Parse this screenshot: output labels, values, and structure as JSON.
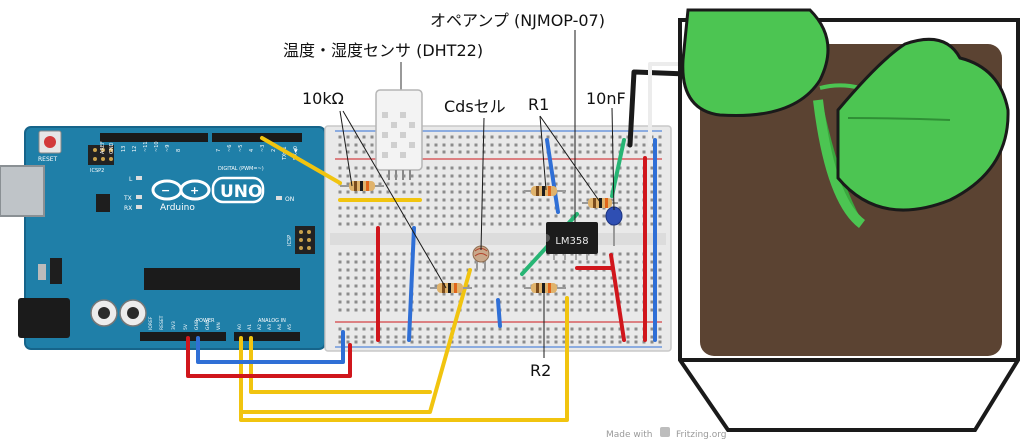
{
  "labels": {
    "opamp": "オペアンプ (NJMOP-07)",
    "dht": "温度・湿度センサ (DHT22)",
    "res10k": "10kΩ",
    "cds": "Cdsセル",
    "r1": "R1",
    "cap": "10nF",
    "r2": "R2"
  },
  "arduino": {
    "board": "UNO",
    "brand": "Arduino",
    "reset": "RESET",
    "icsp2": "ICSP2",
    "icsp": "ICSP",
    "led_l": "L",
    "led_tx": "TX",
    "led_rx": "RX",
    "led_on": "ON",
    "digital": "DIGITAL (PWM=~)",
    "power": "POWER",
    "analog": "ANALOG IN",
    "aref": "AREF",
    "gnd": "GND",
    "ioref": "IOREF",
    "reset_pin": "RESET",
    "v33": "3V3",
    "v5": "5V",
    "gnd_pin": "GND",
    "gnd_pin2": "GND",
    "vin": "VIN",
    "a0": "A0",
    "a1": "A1",
    "a2": "A2",
    "a3": "A3",
    "a4": "A4",
    "a5": "A5",
    "d13": "13",
    "d12": "12",
    "d11": "~11",
    "d10": "~10",
    "d9": "~9",
    "d8": "8",
    "d7": "7",
    "d6": "~6",
    "d5": "~5",
    "d4": "4",
    "d3": "~3",
    "d2": "2",
    "tx1": "TX▶1",
    "rx0": "RX◀0"
  },
  "chip_label": "LM358",
  "footer": {
    "made_with": "Made with",
    "brand": "Fritzing.org"
  },
  "colors": {
    "arduino": "#1f7fa8",
    "wire_yellow": "#f1c40f",
    "wire_red": "#d0161c",
    "wire_blue": "#2f6fd6",
    "wire_green": "#27b574",
    "soil": "#5b4332",
    "leaf": "#4cc552"
  }
}
